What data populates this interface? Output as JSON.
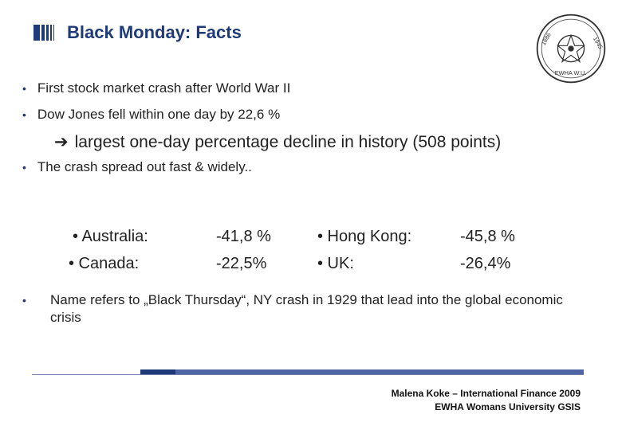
{
  "slide": {
    "title": "Black Monday: Facts",
    "bullets": [
      "First stock market crash after World War II",
      "Dow Jones fell within one day by 22,6 %",
      "The crash spread out fast & widely.."
    ],
    "arrow_text": "largest one-day percentage decline in history (508 points)",
    "countries": [
      {
        "name": "• Australia:",
        "value": "-41,8 %"
      },
      {
        "name": "• Canada:",
        "value": "-22,5%"
      },
      {
        "name": "• Hong Kong:",
        "value": "-45,8 %"
      },
      {
        "name": "• UK:",
        "value": "-26,4%"
      }
    ],
    "note": "Name refers to „Black Thursday“, NY crash in 1929 that lead into the global economic crisis",
    "footer": {
      "line1": "Malena Koke – International Finance 2009",
      "line2": "EWHA Womans University GSIS"
    }
  },
  "seal": {
    "left_year": "1886",
    "right_year": "1945",
    "bottom_text": "EWHA W.U."
  },
  "colors": {
    "accent": "#1f3a78",
    "rule": "#4f66a5"
  },
  "icons": {
    "title_mark": "vertical-bars-icon",
    "arrow": "right-arrow-icon",
    "seal": "university-seal-icon"
  }
}
